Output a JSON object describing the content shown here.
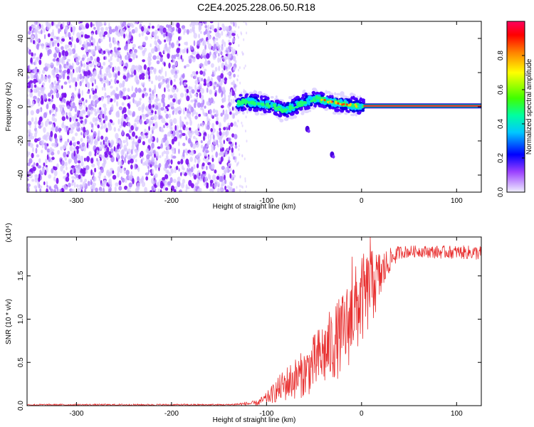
{
  "title": "C2E4.2025.228.06.50.R18",
  "chart_data": [
    {
      "type": "heatmap",
      "xlabel": "Height of straight line (km)",
      "ylabel": "Frequency (Hz)",
      "xlim": [
        -352,
        126
      ],
      "ylim": [
        -50,
        50
      ],
      "x_ticks": [
        -300,
        -200,
        -100,
        0,
        100
      ],
      "y_ticks": [
        -40,
        -20,
        0,
        20,
        40
      ],
      "colorbar": {
        "label": "Normalized spectral amplitude",
        "range": [
          0,
          1
        ],
        "ticks": [
          "0.0",
          "0.2",
          "0.4",
          "0.6",
          "0.8"
        ],
        "tick_values": [
          0,
          0.2,
          0.4,
          0.6,
          0.8
        ],
        "colors": [
          "#f0f0ff",
          "#7a00ff",
          "#0000ff",
          "#00ffff",
          "#00ff00",
          "#ffff00",
          "#ff8000",
          "#ff0000",
          "#ff0060"
        ]
      },
      "regions": {
        "noise_field": {
          "x": [
            -352,
            -132
          ],
          "y": [
            -50,
            50
          ],
          "level": 0.15
        },
        "signal_band": {
          "x": [
            -132,
            2
          ],
          "center_freq": [
            2,
            3,
            2,
            1,
            -2,
            0,
            3,
            5,
            3,
            2,
            1,
            0
          ],
          "halfwidth": 4
        },
        "carrier_line": {
          "x": [
            2,
            126
          ],
          "freq": 0.5,
          "level": 0.95
        },
        "isolated_blobs": [
          {
            "x": -57,
            "y": -13
          },
          {
            "x": -31,
            "y": -28
          }
        ]
      }
    },
    {
      "type": "line",
      "xlabel": "Height of straight line (km)",
      "ylabel": "SNR (10 * v/v)",
      "multiplier": "(x10⁴)",
      "xlim": [
        -352,
        126
      ],
      "ylim": [
        0,
        1.95
      ],
      "x_ticks": [
        -300,
        -200,
        -100,
        0,
        100
      ],
      "y_ticks": [
        "0.0",
        "0.5",
        "1.0",
        "1.5"
      ],
      "y_tick_values": [
        0,
        0.5,
        1.0,
        1.5
      ],
      "series": [
        {
          "color": "#e83030",
          "envelope": {
            "x": [
              -352,
              -140,
              -110,
              -100,
              -80,
              -60,
              -40,
              -20,
              -10,
              0,
              10,
              20,
              30,
              40,
              60,
              80,
              100,
              126
            ],
            "lower": [
              0.0,
              0.0,
              0.0,
              0.02,
              0.05,
              0.1,
              0.2,
              0.35,
              0.5,
              0.7,
              0.9,
              1.2,
              1.55,
              1.7,
              1.72,
              1.7,
              1.7,
              1.68
            ],
            "upper": [
              0.02,
              0.02,
              0.06,
              0.15,
              0.45,
              0.65,
              1.0,
              1.3,
              1.55,
              1.75,
              1.8,
              1.8,
              1.82,
              1.85,
              1.85,
              1.85,
              1.85,
              1.85
            ]
          },
          "spikes": [
            {
              "x": -10,
              "y": 1.72
            },
            {
              "x": 9,
              "y": 1.95
            },
            {
              "x": 13,
              "y": 1.55
            }
          ]
        }
      ]
    }
  ]
}
